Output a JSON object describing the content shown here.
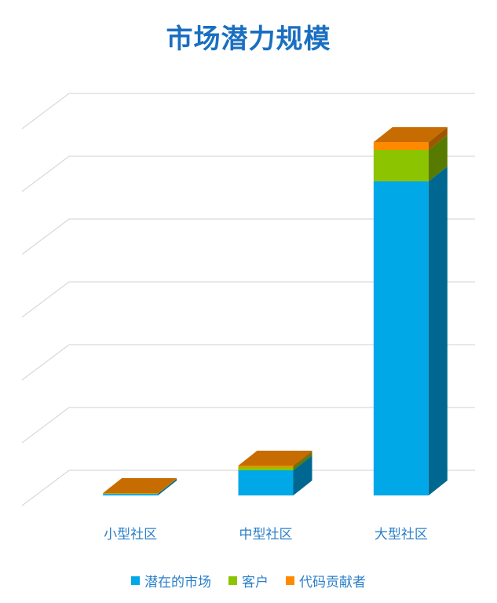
{
  "chart_data": {
    "type": "bar",
    "stacked": true,
    "three_d": true,
    "title": "市场潜力规模",
    "xlabel": "",
    "ylabel": "",
    "categories": [
      "小型社区",
      "中型社区",
      "大型社区"
    ],
    "series": [
      {
        "name": "潜在的市场",
        "color": "#00a8e8",
        "values": [
          1,
          16,
          200
        ]
      },
      {
        "name": "客户",
        "color": "#8dc400",
        "values": [
          0.3,
          2,
          20
        ]
      },
      {
        "name": "代码贡献者",
        "color": "#ff8a00",
        "values": [
          0.2,
          1,
          5
        ]
      }
    ],
    "ylim": [
      0,
      260
    ],
    "grid": true,
    "legend_position": "bottom"
  }
}
